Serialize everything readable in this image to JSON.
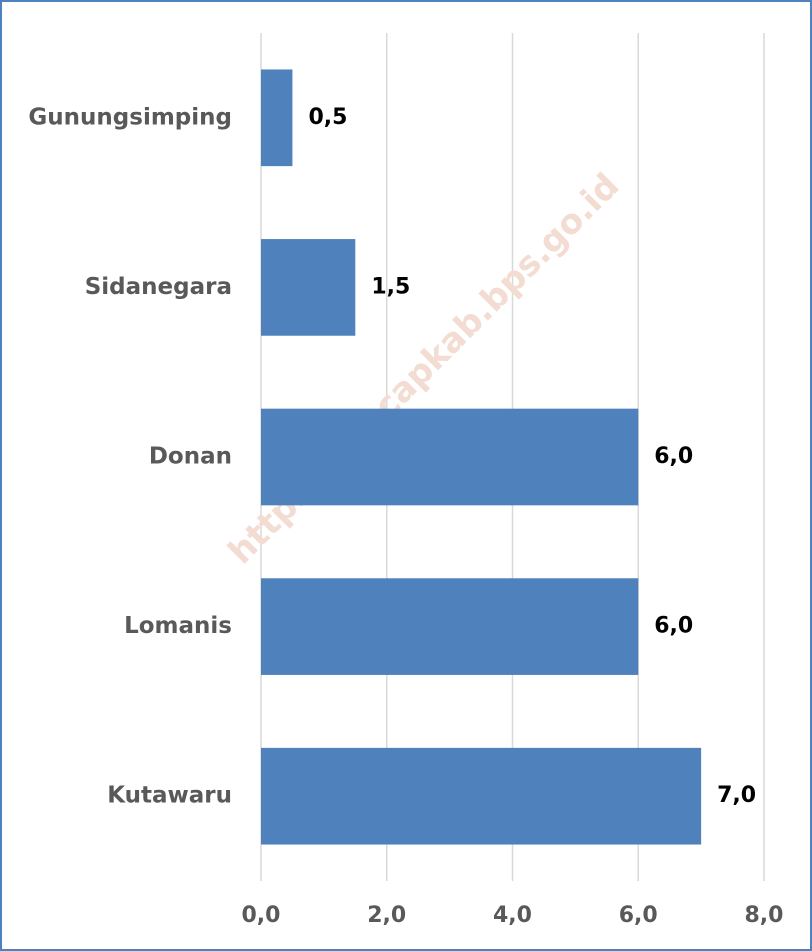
{
  "chart_data": {
    "type": "bar",
    "orientation": "horizontal",
    "categories": [
      "Gunungsimping",
      "Sidanegara",
      "Donan",
      "Lomanis",
      "Kutawaru"
    ],
    "values": [
      0.5,
      1.5,
      6.0,
      6.0,
      7.0
    ],
    "value_labels": [
      "0,5",
      "1,5",
      "6,0",
      "6,0",
      "7,0"
    ],
    "color": "#4f81bd",
    "xlim": [
      0,
      8
    ],
    "xticks": [
      {
        "value": 0,
        "label": "0,0"
      },
      {
        "value": 2,
        "label": "2,0"
      },
      {
        "value": 4,
        "label": "4,0"
      },
      {
        "value": 6,
        "label": "6,0"
      },
      {
        "value": 8,
        "label": "8,0"
      }
    ],
    "grid": true,
    "watermark": "https://cilacapkab.bps.go.id"
  }
}
